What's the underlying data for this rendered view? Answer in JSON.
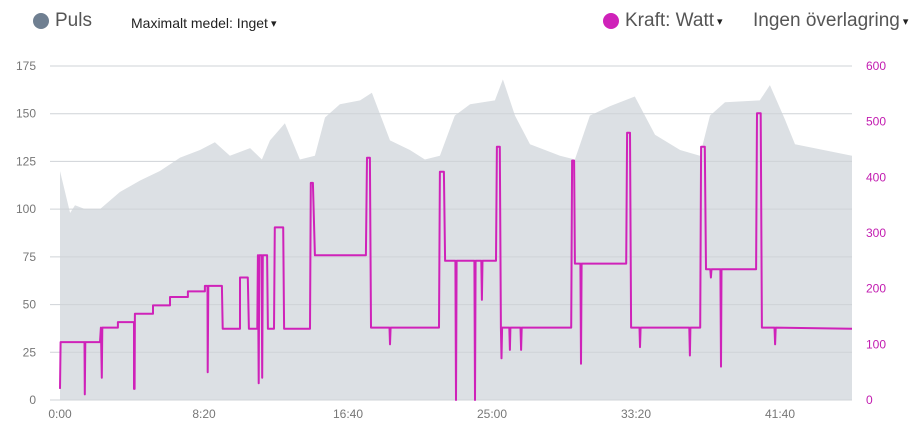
{
  "legend": {
    "left_series": "Puls",
    "max_avg_label": "Maximalt medel: Inget",
    "right_series": "Kraft: Watt",
    "overlay_label": "Ingen överlagring",
    "caret": "▾"
  },
  "colors": {
    "puls": "#6f7f91",
    "kraft": "#cf22b9",
    "area": "#dce0e4",
    "grid": "#cfd3d7"
  },
  "chart_data": {
    "type": "area+line",
    "x_unit": "seconds",
    "xlim": [
      0,
      2750
    ],
    "x_ticks": [
      {
        "v": 0,
        "label": "0:00"
      },
      {
        "v": 500,
        "label": "8:20"
      },
      {
        "v": 1000,
        "label": "16:40"
      },
      {
        "v": 1500,
        "label": "25:00"
      },
      {
        "v": 2000,
        "label": "33:20"
      },
      {
        "v": 2500,
        "label": "41:40"
      }
    ],
    "left_axis": {
      "label": "Puls",
      "ylim": [
        0,
        175
      ],
      "ticks": [
        "0",
        "25",
        "50",
        "75",
        "100",
        "125",
        "150",
        "175"
      ]
    },
    "right_axis": {
      "label": "Kraft: Watt",
      "ylim": [
        0,
        600
      ],
      "ticks": [
        "0",
        "100",
        "200",
        "300",
        "400",
        "500",
        "600"
      ]
    },
    "grid": true,
    "series": [
      {
        "name": "Puls",
        "type": "area",
        "axis": "left",
        "points": [
          [
            0,
            120
          ],
          [
            35,
            98
          ],
          [
            52,
            102
          ],
          [
            87,
            100
          ],
          [
            139,
            100
          ],
          [
            208,
            109
          ],
          [
            278,
            115
          ],
          [
            347,
            120
          ],
          [
            417,
            127
          ],
          [
            486,
            131
          ],
          [
            538,
            135
          ],
          [
            590,
            128
          ],
          [
            660,
            132
          ],
          [
            701,
            126
          ],
          [
            729,
            136
          ],
          [
            781,
            145
          ],
          [
            833,
            126
          ],
          [
            885,
            128
          ],
          [
            920,
            148
          ],
          [
            972,
            155
          ],
          [
            1042,
            157
          ],
          [
            1083,
            161
          ],
          [
            1146,
            136
          ],
          [
            1215,
            131
          ],
          [
            1267,
            126
          ],
          [
            1319,
            128
          ],
          [
            1371,
            149
          ],
          [
            1424,
            155
          ],
          [
            1510,
            157
          ],
          [
            1538,
            168
          ],
          [
            1580,
            149
          ],
          [
            1632,
            134
          ],
          [
            1736,
            128
          ],
          [
            1788,
            126
          ],
          [
            1840,
            149
          ],
          [
            1910,
            154
          ],
          [
            1996,
            159
          ],
          [
            2066,
            139
          ],
          [
            2153,
            131
          ],
          [
            2222,
            128
          ],
          [
            2257,
            149
          ],
          [
            2309,
            156
          ],
          [
            2430,
            157
          ],
          [
            2465,
            165
          ],
          [
            2517,
            147
          ],
          [
            2552,
            134
          ],
          [
            2750,
            128
          ]
        ]
      },
      {
        "name": "Kraft: Watt",
        "type": "line",
        "axis": "right",
        "points": [
          [
            0,
            20
          ],
          [
            2,
            104
          ],
          [
            85,
            104
          ],
          [
            86,
            10
          ],
          [
            88,
            104
          ],
          [
            139,
            104
          ],
          [
            142,
            130
          ],
          [
            145,
            40
          ],
          [
            147,
            130
          ],
          [
            201,
            130
          ],
          [
            201,
            140
          ],
          [
            257,
            140
          ],
          [
            257,
            20
          ],
          [
            259,
            20
          ],
          [
            260,
            155
          ],
          [
            323,
            155
          ],
          [
            323,
            170
          ],
          [
            382,
            170
          ],
          [
            382,
            185
          ],
          [
            444,
            185
          ],
          [
            444,
            195
          ],
          [
            503,
            195
          ],
          [
            503,
            205
          ],
          [
            512,
            205
          ],
          [
            513,
            50
          ],
          [
            515,
            205
          ],
          [
            562,
            205
          ],
          [
            565,
            128
          ],
          [
            625,
            128
          ],
          [
            625,
            220
          ],
          [
            652,
            220
          ],
          [
            656,
            128
          ],
          [
            685,
            128
          ],
          [
            687,
            260
          ],
          [
            690,
            30
          ],
          [
            692,
            260
          ],
          [
            700,
            260
          ],
          [
            702,
            40
          ],
          [
            704,
            260
          ],
          [
            719,
            260
          ],
          [
            722,
            128
          ],
          [
            743,
            128
          ],
          [
            746,
            310
          ],
          [
            775,
            310
          ],
          [
            778,
            128
          ],
          [
            868,
            128
          ],
          [
            871,
            390
          ],
          [
            878,
            390
          ],
          [
            885,
            260
          ],
          [
            1062,
            260
          ],
          [
            1066,
            435
          ],
          [
            1076,
            435
          ],
          [
            1080,
            130
          ],
          [
            1144,
            130
          ],
          [
            1146,
            100
          ],
          [
            1148,
            130
          ],
          [
            1316,
            130
          ],
          [
            1319,
            410
          ],
          [
            1333,
            410
          ],
          [
            1337,
            250
          ],
          [
            1373,
            250
          ],
          [
            1375,
            0
          ],
          [
            1377,
            250
          ],
          [
            1439,
            250
          ],
          [
            1441,
            0
          ],
          [
            1443,
            250
          ],
          [
            1463,
            250
          ],
          [
            1465,
            180
          ],
          [
            1467,
            250
          ],
          [
            1514,
            250
          ],
          [
            1517,
            455
          ],
          [
            1527,
            455
          ],
          [
            1531,
            130
          ],
          [
            1533,
            75
          ],
          [
            1535,
            130
          ],
          [
            1560,
            130
          ],
          [
            1562,
            90
          ],
          [
            1564,
            130
          ],
          [
            1599,
            130
          ],
          [
            1601,
            90
          ],
          [
            1603,
            130
          ],
          [
            1775,
            130
          ],
          [
            1778,
            430
          ],
          [
            1785,
            430
          ],
          [
            1788,
            245
          ],
          [
            1807,
            245
          ],
          [
            1809,
            65
          ],
          [
            1811,
            245
          ],
          [
            1966,
            245
          ],
          [
            1969,
            480
          ],
          [
            1979,
            480
          ],
          [
            1983,
            130
          ],
          [
            2012,
            130
          ],
          [
            2014,
            95
          ],
          [
            2016,
            130
          ],
          [
            2185,
            130
          ],
          [
            2187,
            80
          ],
          [
            2189,
            130
          ],
          [
            2223,
            130
          ],
          [
            2226,
            455
          ],
          [
            2239,
            455
          ],
          [
            2243,
            235
          ],
          [
            2258,
            235
          ],
          [
            2260,
            220
          ],
          [
            2262,
            235
          ],
          [
            2293,
            235
          ],
          [
            2295,
            60
          ],
          [
            2297,
            235
          ],
          [
            2417,
            235
          ],
          [
            2420,
            515
          ],
          [
            2433,
            515
          ],
          [
            2437,
            130
          ],
          [
            2481,
            130
          ],
          [
            2483,
            100
          ],
          [
            2485,
            130
          ],
          [
            2750,
            128
          ]
        ]
      }
    ]
  }
}
